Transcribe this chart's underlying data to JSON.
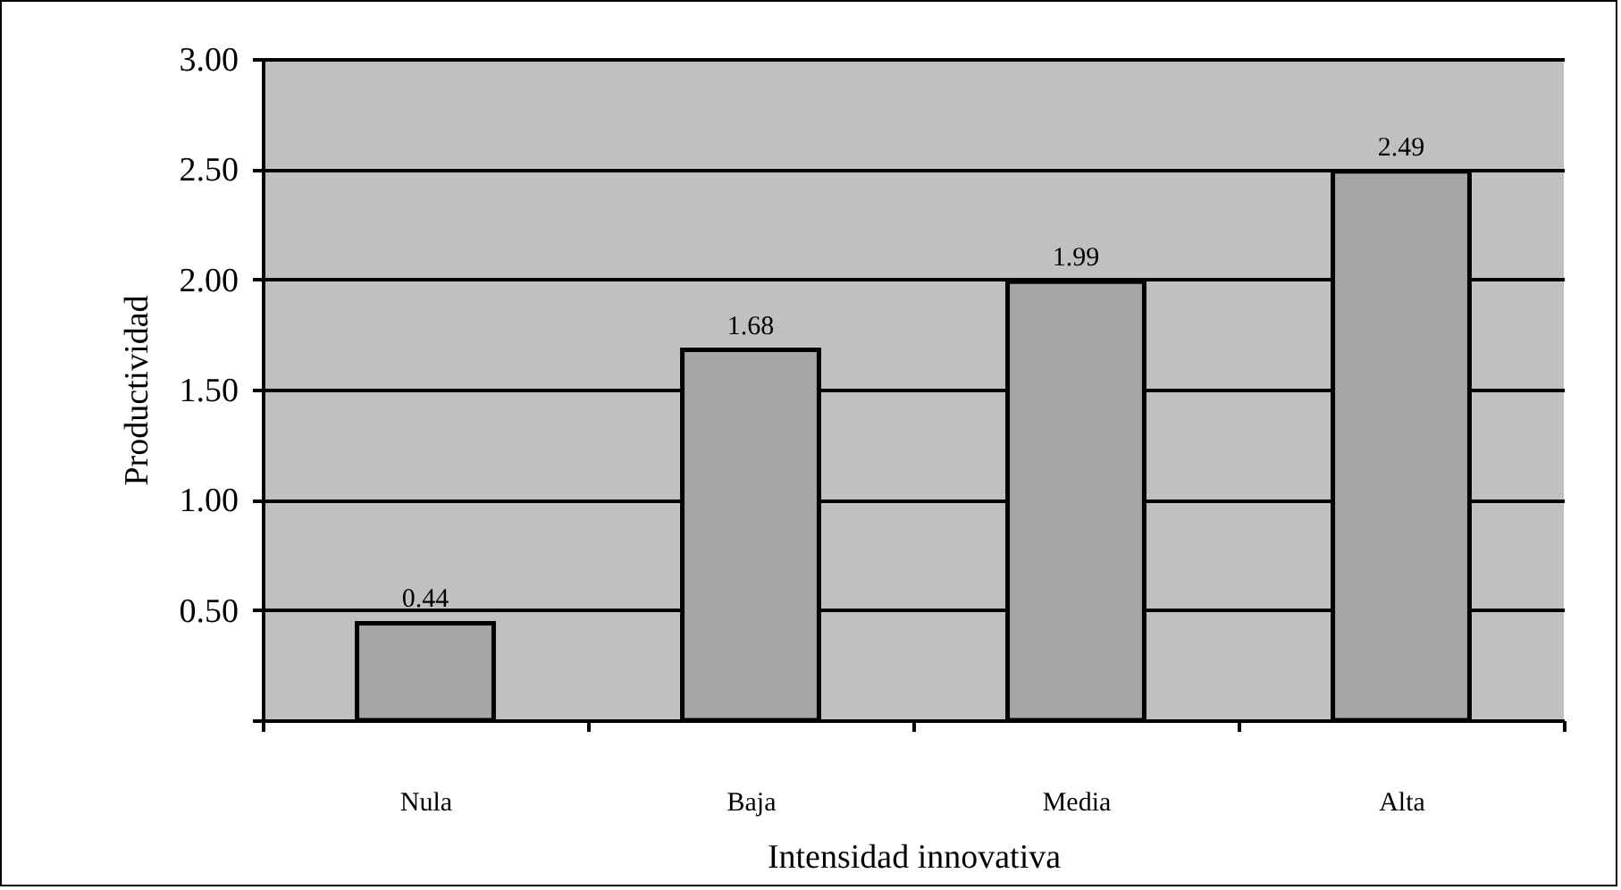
{
  "chart_data": {
    "type": "bar",
    "xlabel": "Intensidad innovativa",
    "ylabel": "Productividad",
    "categories": [
      "Nula",
      "Baja",
      "Media",
      "Alta"
    ],
    "values": [
      0.44,
      1.68,
      1.99,
      2.49
    ],
    "color": "#a6a6a6",
    "ylim": [
      0,
      3
    ],
    "yticks": [
      {
        "value": 0,
        "label": null
      },
      {
        "value": 0.5,
        "label": "0.50"
      },
      {
        "value": 1,
        "label": "1.00"
      },
      {
        "value": 1.5,
        "label": "1.50"
      },
      {
        "value": 2,
        "label": "2.00"
      },
      {
        "value": 2.5,
        "label": "2.50"
      },
      {
        "value": 3,
        "label": "3.00"
      }
    ],
    "grid": "y",
    "data_labels": true
  }
}
